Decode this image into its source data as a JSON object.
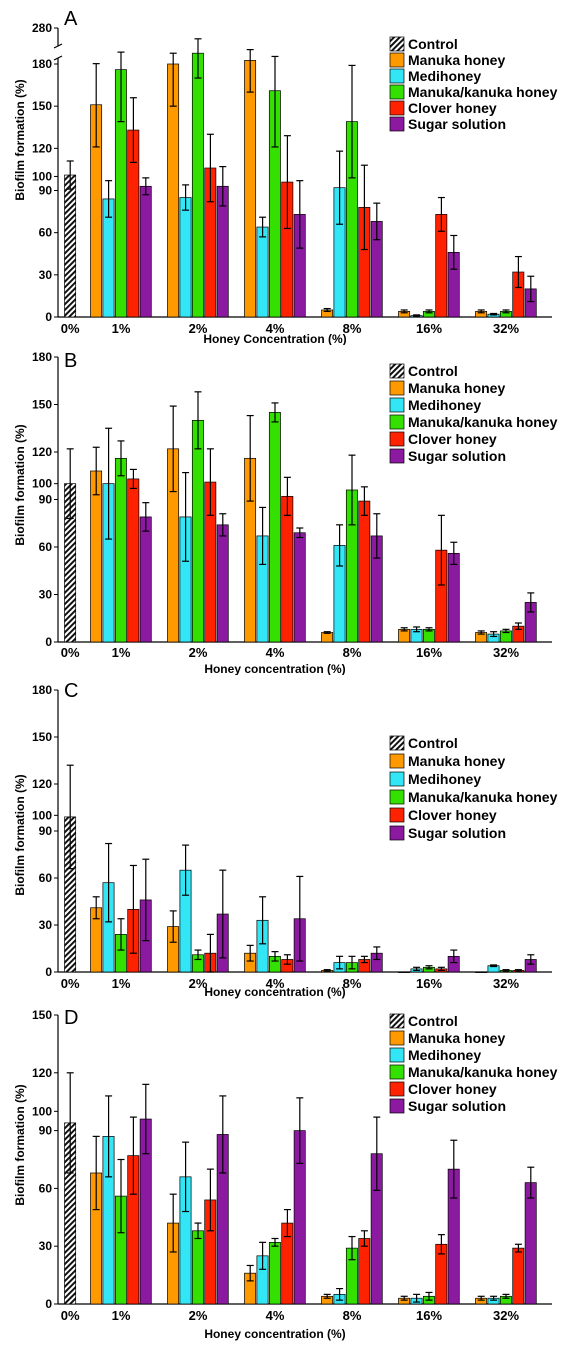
{
  "chart_data": [
    {
      "type": "bar",
      "panel_label": "A",
      "xlabel": "Honey Concentration (%)",
      "ylabel": "Biofilm formation (%)",
      "ylim": [
        0,
        280
      ],
      "axis_break": {
        "from": 180,
        "to": 280
      },
      "yticks": [
        0,
        30,
        60,
        90,
        100,
        120,
        150,
        180,
        280
      ],
      "legend_position": "top-right",
      "categories": [
        "0%",
        "1%",
        "2%",
        "4%",
        "8%",
        "16%",
        "32%"
      ],
      "colors": [
        "#333333",
        "#ff9900",
        "#33e6f5",
        "#33e000",
        "#ff2200",
        "#8c1aa0"
      ],
      "series": [
        {
          "name": "Control",
          "values": [
            101,
            null,
            null,
            null,
            null,
            null,
            null
          ],
          "errors": [
            10,
            null,
            null,
            null,
            null,
            null,
            null
          ]
        },
        {
          "name": "Manuka honey",
          "values": [
            null,
            151,
            180,
            190,
            5,
            4,
            4
          ],
          "errors": [
            null,
            30,
            30,
            30,
            1,
            1,
            1
          ]
        },
        {
          "name": "Medihoney",
          "values": [
            null,
            84,
            85,
            64,
            92,
            1,
            2
          ],
          "errors": [
            null,
            13,
            9,
            7,
            26,
            0.5,
            0.5
          ]
        },
        {
          "name": "Manuka/kanuka honey",
          "values": [
            null,
            176,
            210,
            161,
            139,
            4,
            4
          ],
          "errors": [
            null,
            37,
            40,
            40,
            40,
            1,
            1
          ]
        },
        {
          "name": "Clover honey",
          "values": [
            null,
            133,
            106,
            96,
            78,
            73,
            32
          ],
          "errors": [
            null,
            23,
            24,
            33,
            30,
            12,
            11
          ]
        },
        {
          "name": "Sugar solution",
          "values": [
            null,
            93,
            93,
            73,
            68,
            46,
            20
          ],
          "errors": [
            null,
            6,
            14,
            24,
            13,
            12,
            9
          ]
        }
      ]
    },
    {
      "type": "bar",
      "panel_label": "B",
      "xlabel": "Honey concentration (%)",
      "ylabel": "Biofilm formation (%)",
      "ylim": [
        0,
        180
      ],
      "yticks": [
        0,
        30,
        60,
        90,
        100,
        120,
        150,
        180
      ],
      "legend_position": "top-right",
      "categories": [
        "0%",
        "1%",
        "2%",
        "4%",
        "8%",
        "16%",
        "32%"
      ],
      "colors": [
        "#333333",
        "#ff9900",
        "#33e6f5",
        "#33e000",
        "#ff2200",
        "#8c1aa0"
      ],
      "series": [
        {
          "name": "Control",
          "values": [
            100,
            null,
            null,
            null,
            null,
            null,
            null
          ],
          "errors": [
            22,
            null,
            null,
            null,
            null,
            null,
            null
          ]
        },
        {
          "name": "Manuka honey",
          "values": [
            null,
            108,
            122,
            116,
            6,
            8,
            6
          ],
          "errors": [
            null,
            15,
            27,
            27,
            0.5,
            1,
            1
          ]
        },
        {
          "name": "Medihoney",
          "values": [
            null,
            100,
            79,
            67,
            61,
            8,
            5
          ],
          "errors": [
            null,
            35,
            28,
            18,
            13,
            1.5,
            1.5
          ]
        },
        {
          "name": "Manuka/kanuka honey",
          "values": [
            null,
            116,
            140,
            145,
            96,
            8,
            7
          ],
          "errors": [
            null,
            11,
            18,
            6,
            22,
            1,
            1
          ]
        },
        {
          "name": "Clover honey",
          "values": [
            null,
            103,
            101,
            92,
            89,
            58,
            10
          ],
          "errors": [
            null,
            6,
            21,
            12,
            9,
            22,
            2
          ]
        },
        {
          "name": "Sugar solution",
          "values": [
            null,
            79,
            74,
            69,
            67,
            56,
            25
          ],
          "errors": [
            null,
            9,
            7,
            3,
            14,
            7,
            6
          ]
        }
      ]
    },
    {
      "type": "bar",
      "panel_label": "C",
      "xlabel": "Honey concentration (%)",
      "ylabel": "Biofilm formation (%)",
      "ylim": [
        0,
        180
      ],
      "yticks": [
        0,
        30,
        60,
        90,
        100,
        120,
        150,
        180
      ],
      "legend_position": "top-right",
      "categories": [
        "0%",
        "1%",
        "2%",
        "4%",
        "8%",
        "16%",
        "32%"
      ],
      "colors": [
        "#333333",
        "#ff9900",
        "#33e6f5",
        "#33e000",
        "#ff2200",
        "#8c1aa0"
      ],
      "series": [
        {
          "name": "Control",
          "values": [
            99,
            null,
            null,
            null,
            null,
            null,
            null
          ],
          "errors": [
            33,
            null,
            null,
            null,
            null,
            null,
            null
          ]
        },
        {
          "name": "Manuka honey",
          "values": [
            null,
            41,
            29,
            12,
            1,
            0,
            0
          ],
          "errors": [
            null,
            7,
            10,
            5,
            0.5,
            0,
            0
          ]
        },
        {
          "name": "Medihoney",
          "values": [
            null,
            57,
            65,
            33,
            6,
            2,
            4
          ],
          "errors": [
            null,
            25,
            16,
            15,
            4,
            1,
            0.5
          ]
        },
        {
          "name": "Manuka/kanuka honey",
          "values": [
            null,
            24,
            11,
            10,
            6,
            3,
            1
          ],
          "errors": [
            null,
            10,
            3,
            3,
            4,
            1,
            0.5
          ]
        },
        {
          "name": "Clover honey",
          "values": [
            null,
            40,
            12,
            8,
            8,
            2,
            1
          ],
          "errors": [
            null,
            28,
            12,
            3,
            2,
            1,
            0.5
          ]
        },
        {
          "name": "Sugar solution",
          "values": [
            null,
            46,
            37,
            34,
            12,
            10,
            8
          ],
          "errors": [
            null,
            26,
            28,
            27,
            4,
            4,
            3
          ]
        }
      ]
    },
    {
      "type": "bar",
      "panel_label": "D",
      "xlabel": "Honey concentration (%)",
      "ylabel": "Biofilm formation (%)",
      "ylim": [
        0,
        150
      ],
      "yticks": [
        0,
        30,
        60,
        90,
        100,
        120,
        150
      ],
      "legend_position": "top-right",
      "categories": [
        "0%",
        "1%",
        "2%",
        "4%",
        "8%",
        "16%",
        "32%"
      ],
      "colors": [
        "#333333",
        "#ff9900",
        "#33e6f5",
        "#33e000",
        "#ff2200",
        "#8c1aa0"
      ],
      "series": [
        {
          "name": "Control",
          "values": [
            94,
            null,
            null,
            null,
            null,
            null,
            null
          ],
          "errors": [
            26,
            null,
            null,
            null,
            null,
            null,
            null
          ]
        },
        {
          "name": "Manuka honey",
          "values": [
            null,
            68,
            42,
            16,
            4,
            3,
            3
          ],
          "errors": [
            null,
            19,
            15,
            4,
            1,
            1,
            1
          ]
        },
        {
          "name": "Medihoney",
          "values": [
            null,
            87,
            66,
            25,
            5,
            3,
            3
          ],
          "errors": [
            null,
            21,
            18,
            7,
            3,
            2,
            1
          ]
        },
        {
          "name": "Manuka/kanuka honey",
          "values": [
            null,
            56,
            38,
            32,
            29,
            4,
            4
          ],
          "errors": [
            null,
            19,
            4,
            2,
            6,
            2,
            1
          ]
        },
        {
          "name": "Clover honey",
          "values": [
            null,
            77,
            54,
            42,
            34,
            31,
            29
          ],
          "errors": [
            null,
            20,
            16,
            7,
            4,
            5,
            2
          ]
        },
        {
          "name": "Sugar solution",
          "values": [
            null,
            96,
            88,
            90,
            78,
            70,
            63
          ],
          "errors": [
            null,
            18,
            20,
            17,
            19,
            15,
            8
          ]
        }
      ]
    }
  ]
}
